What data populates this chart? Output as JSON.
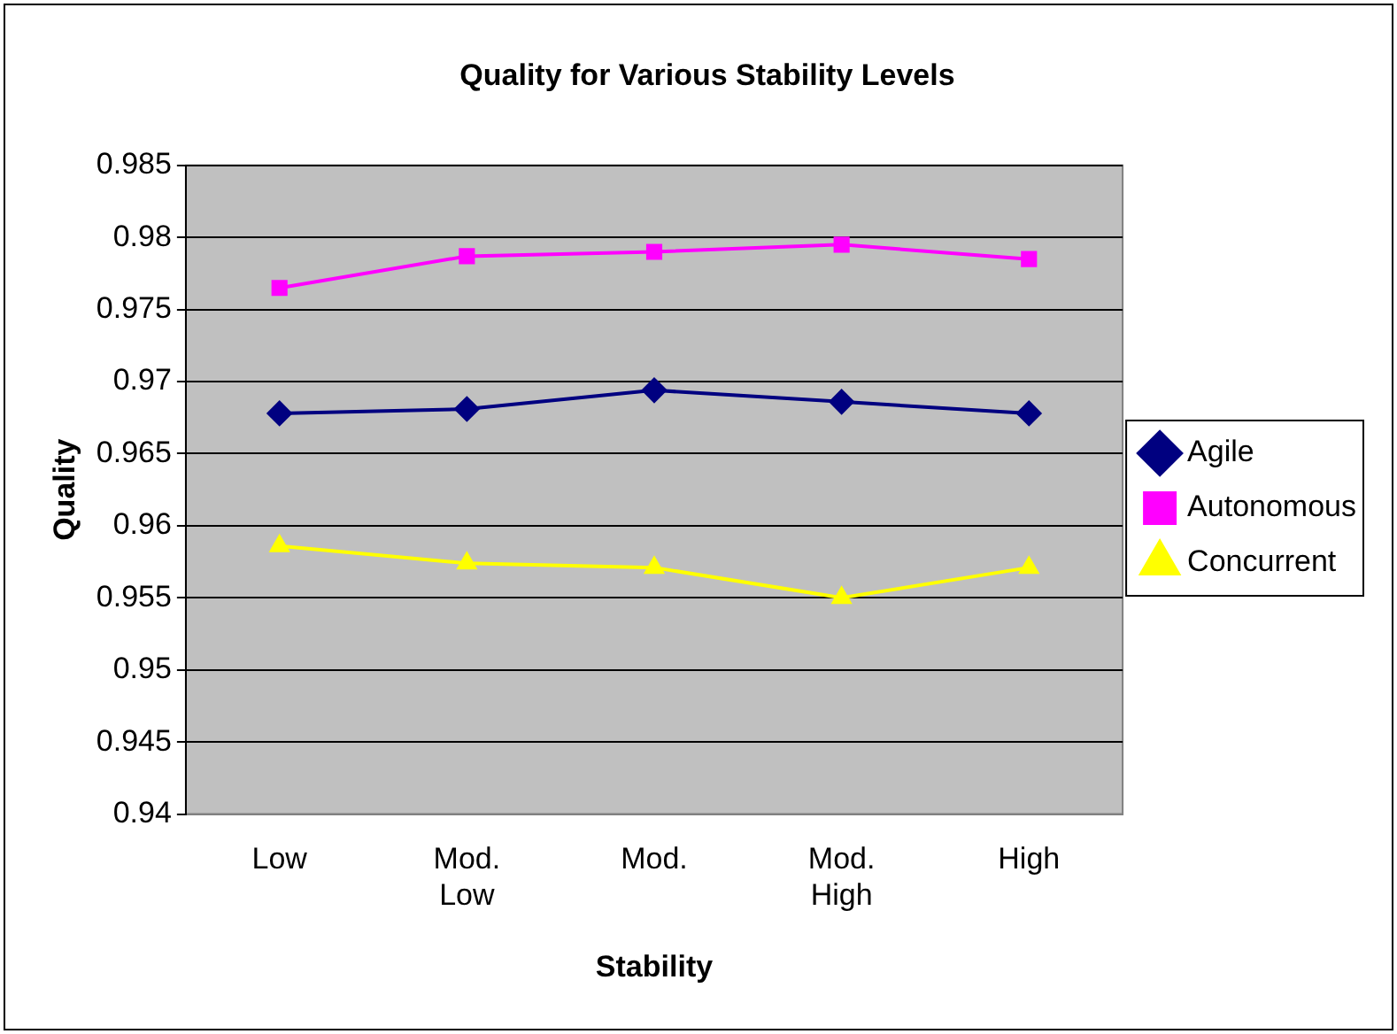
{
  "chart_data": {
    "type": "line",
    "title": "Quality for Various Stability Levels",
    "xlabel": "Stability",
    "ylabel": "Quality",
    "categories": [
      "Low",
      "Mod. Low",
      "Mod.",
      "Mod. High",
      "High"
    ],
    "series": [
      {
        "name": "Agile",
        "color": "#000080",
        "marker": "diamond",
        "values": [
          0.9678,
          0.9681,
          0.9694,
          0.9686,
          0.9678
        ]
      },
      {
        "name": "Autonomous",
        "color": "#ff00ff",
        "marker": "square",
        "values": [
          0.9765,
          0.9787,
          0.979,
          0.9795,
          0.9785
        ]
      },
      {
        "name": "Concurrent",
        "color": "#ffff00",
        "marker": "triangle",
        "values": [
          0.9586,
          0.9574,
          0.9571,
          0.955,
          0.9571
        ]
      }
    ],
    "ylim": [
      0.94,
      0.985
    ],
    "yticks": [
      0.94,
      0.945,
      0.95,
      0.955,
      0.96,
      0.965,
      0.97,
      0.975,
      0.98,
      0.985
    ],
    "grid": "y",
    "legend": "right",
    "line_style": "solid"
  }
}
